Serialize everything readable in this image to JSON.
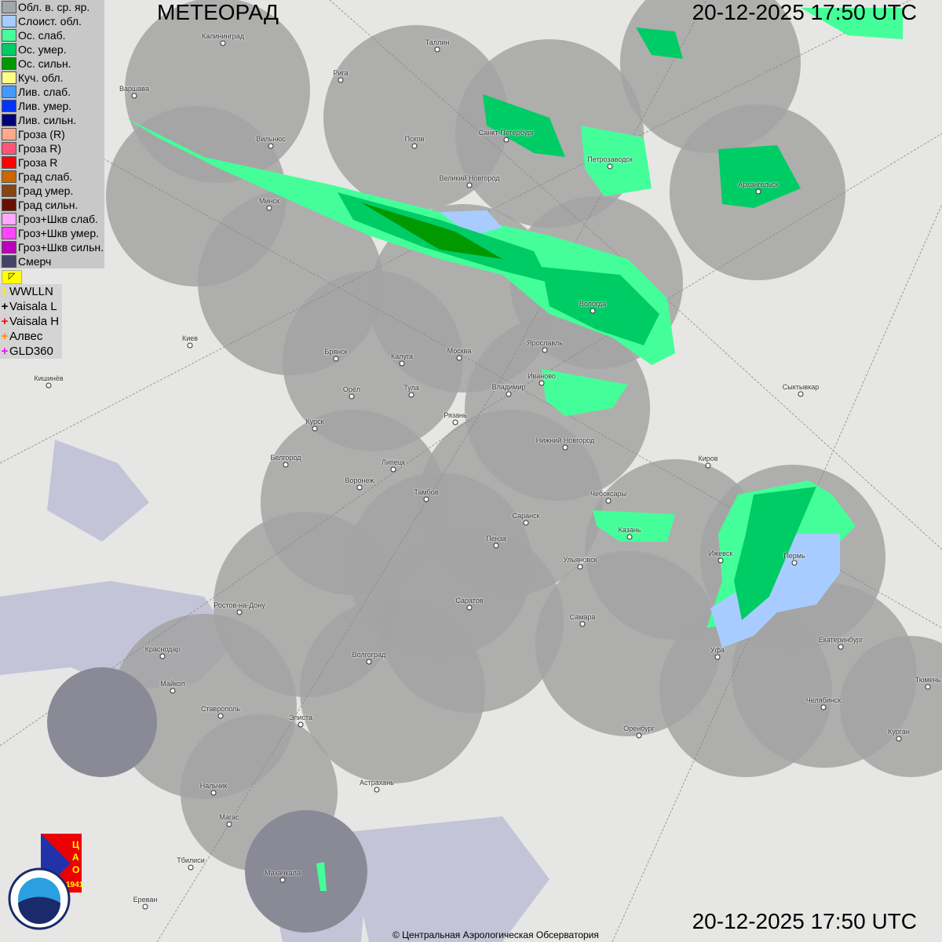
{
  "header": {
    "title": "МЕТЕОРАД",
    "timestamp_top": "20-12-2025  17:50 UTC",
    "timestamp_bottom": "20-12-2025  17:50 UTC"
  },
  "legend": [
    {
      "label": "Обл. в. ср. яр.",
      "color": "#a0a8ac"
    },
    {
      "label": "Слоист. обл.",
      "color": "#a8ccff"
    },
    {
      "label": "Ос. слаб.",
      "color": "#44ff99"
    },
    {
      "label": "Ос. умер.",
      "color": "#00cc66"
    },
    {
      "label": "Ос. сильн.",
      "color": "#009900"
    },
    {
      "label": "Куч. обл.",
      "color": "#ffff88"
    },
    {
      "label": "Лив. слаб.",
      "color": "#4499ff"
    },
    {
      "label": "Лив. умер.",
      "color": "#0033ff"
    },
    {
      "label": "Лив. сильн.",
      "color": "#000077"
    },
    {
      "label": "Гроза (R)",
      "color": "#ffaa88"
    },
    {
      "label": "Гроза R)",
      "color": "#ff5577"
    },
    {
      "label": "Гроза R",
      "color": "#ff0000"
    },
    {
      "label": "Град слаб.",
      "color": "#cc6600"
    },
    {
      "label": "Град умер.",
      "color": "#884411"
    },
    {
      "label": "Град сильн.",
      "color": "#661100"
    },
    {
      "label": "Гроз+Шкв слаб.",
      "color": "#ffaaff"
    },
    {
      "label": "Гроз+Шкв умер.",
      "color": "#ff44ff"
    },
    {
      "label": "Гроз+Шкв сильн.",
      "color": "#bb00bb"
    },
    {
      "label": "Смерч",
      "color": "#444466"
    }
  ],
  "lightning": [
    {
      "label": "WWLLN",
      "color": "#ffee00"
    },
    {
      "label": "Vaisala L",
      "color": "#000000"
    },
    {
      "label": "Vaisala H",
      "color": "#ff0000"
    },
    {
      "label": "Алвес",
      "color": "#ff8800"
    },
    {
      "label": "GLD360",
      "color": "#ff00ff"
    }
  ],
  "cities": [
    "Калининград",
    "Таллин",
    "Рига",
    "Варшава",
    "Санкт-Петербург",
    "Псков",
    "Вильнюс",
    "Петрозаводск",
    "Архангельск",
    "Великий Новгород",
    "Минск",
    "Вологда",
    "Киев",
    "Брянск",
    "Калуга",
    "Москва",
    "Ярославль",
    "Кишинёв",
    "Иваново",
    "Орёл",
    "Тула",
    "Владимир",
    "Сыктывкар",
    "Рязань",
    "Курск",
    "Нижний Новгород",
    "Киров",
    "Белгород",
    "Липецк",
    "Воронеж",
    "Тамбов",
    "Чебоксары",
    "Саранск",
    "Казань",
    "Пенза",
    "Ижевск",
    "Пермь",
    "Ульяновск",
    "Ростов-на-Дону",
    "Саратов",
    "Самара",
    "Краснодар",
    "Уфа",
    "Екатеринбург",
    "Волгоград",
    "Майкоп",
    "Тюмень",
    "Челябинск",
    "Ставрополь",
    "Элиста",
    "Оренбург",
    "Курган",
    "Нальчик",
    "Астрахань",
    "Магас",
    "Тбилиси",
    "Махачкала",
    "Ереван"
  ],
  "logos": {
    "cao": "ЦАО 1941",
    "roshydromet": "РОСГИДРОМЕТ ROSHYDROMET"
  },
  "copyright": "© Центральная Аэрологическая Обсерватория"
}
